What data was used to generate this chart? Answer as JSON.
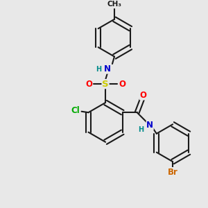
{
  "bg_color": "#e8e8e8",
  "bond_color": "#1a1a1a",
  "bond_width": 1.5,
  "atom_colors": {
    "S": "#cccc00",
    "O": "#ff0000",
    "N": "#0000cc",
    "H": "#008b8b",
    "Cl": "#00aa00",
    "Br": "#cc6600"
  },
  "font_size": 8.5,
  "font_size_H": 7.0
}
